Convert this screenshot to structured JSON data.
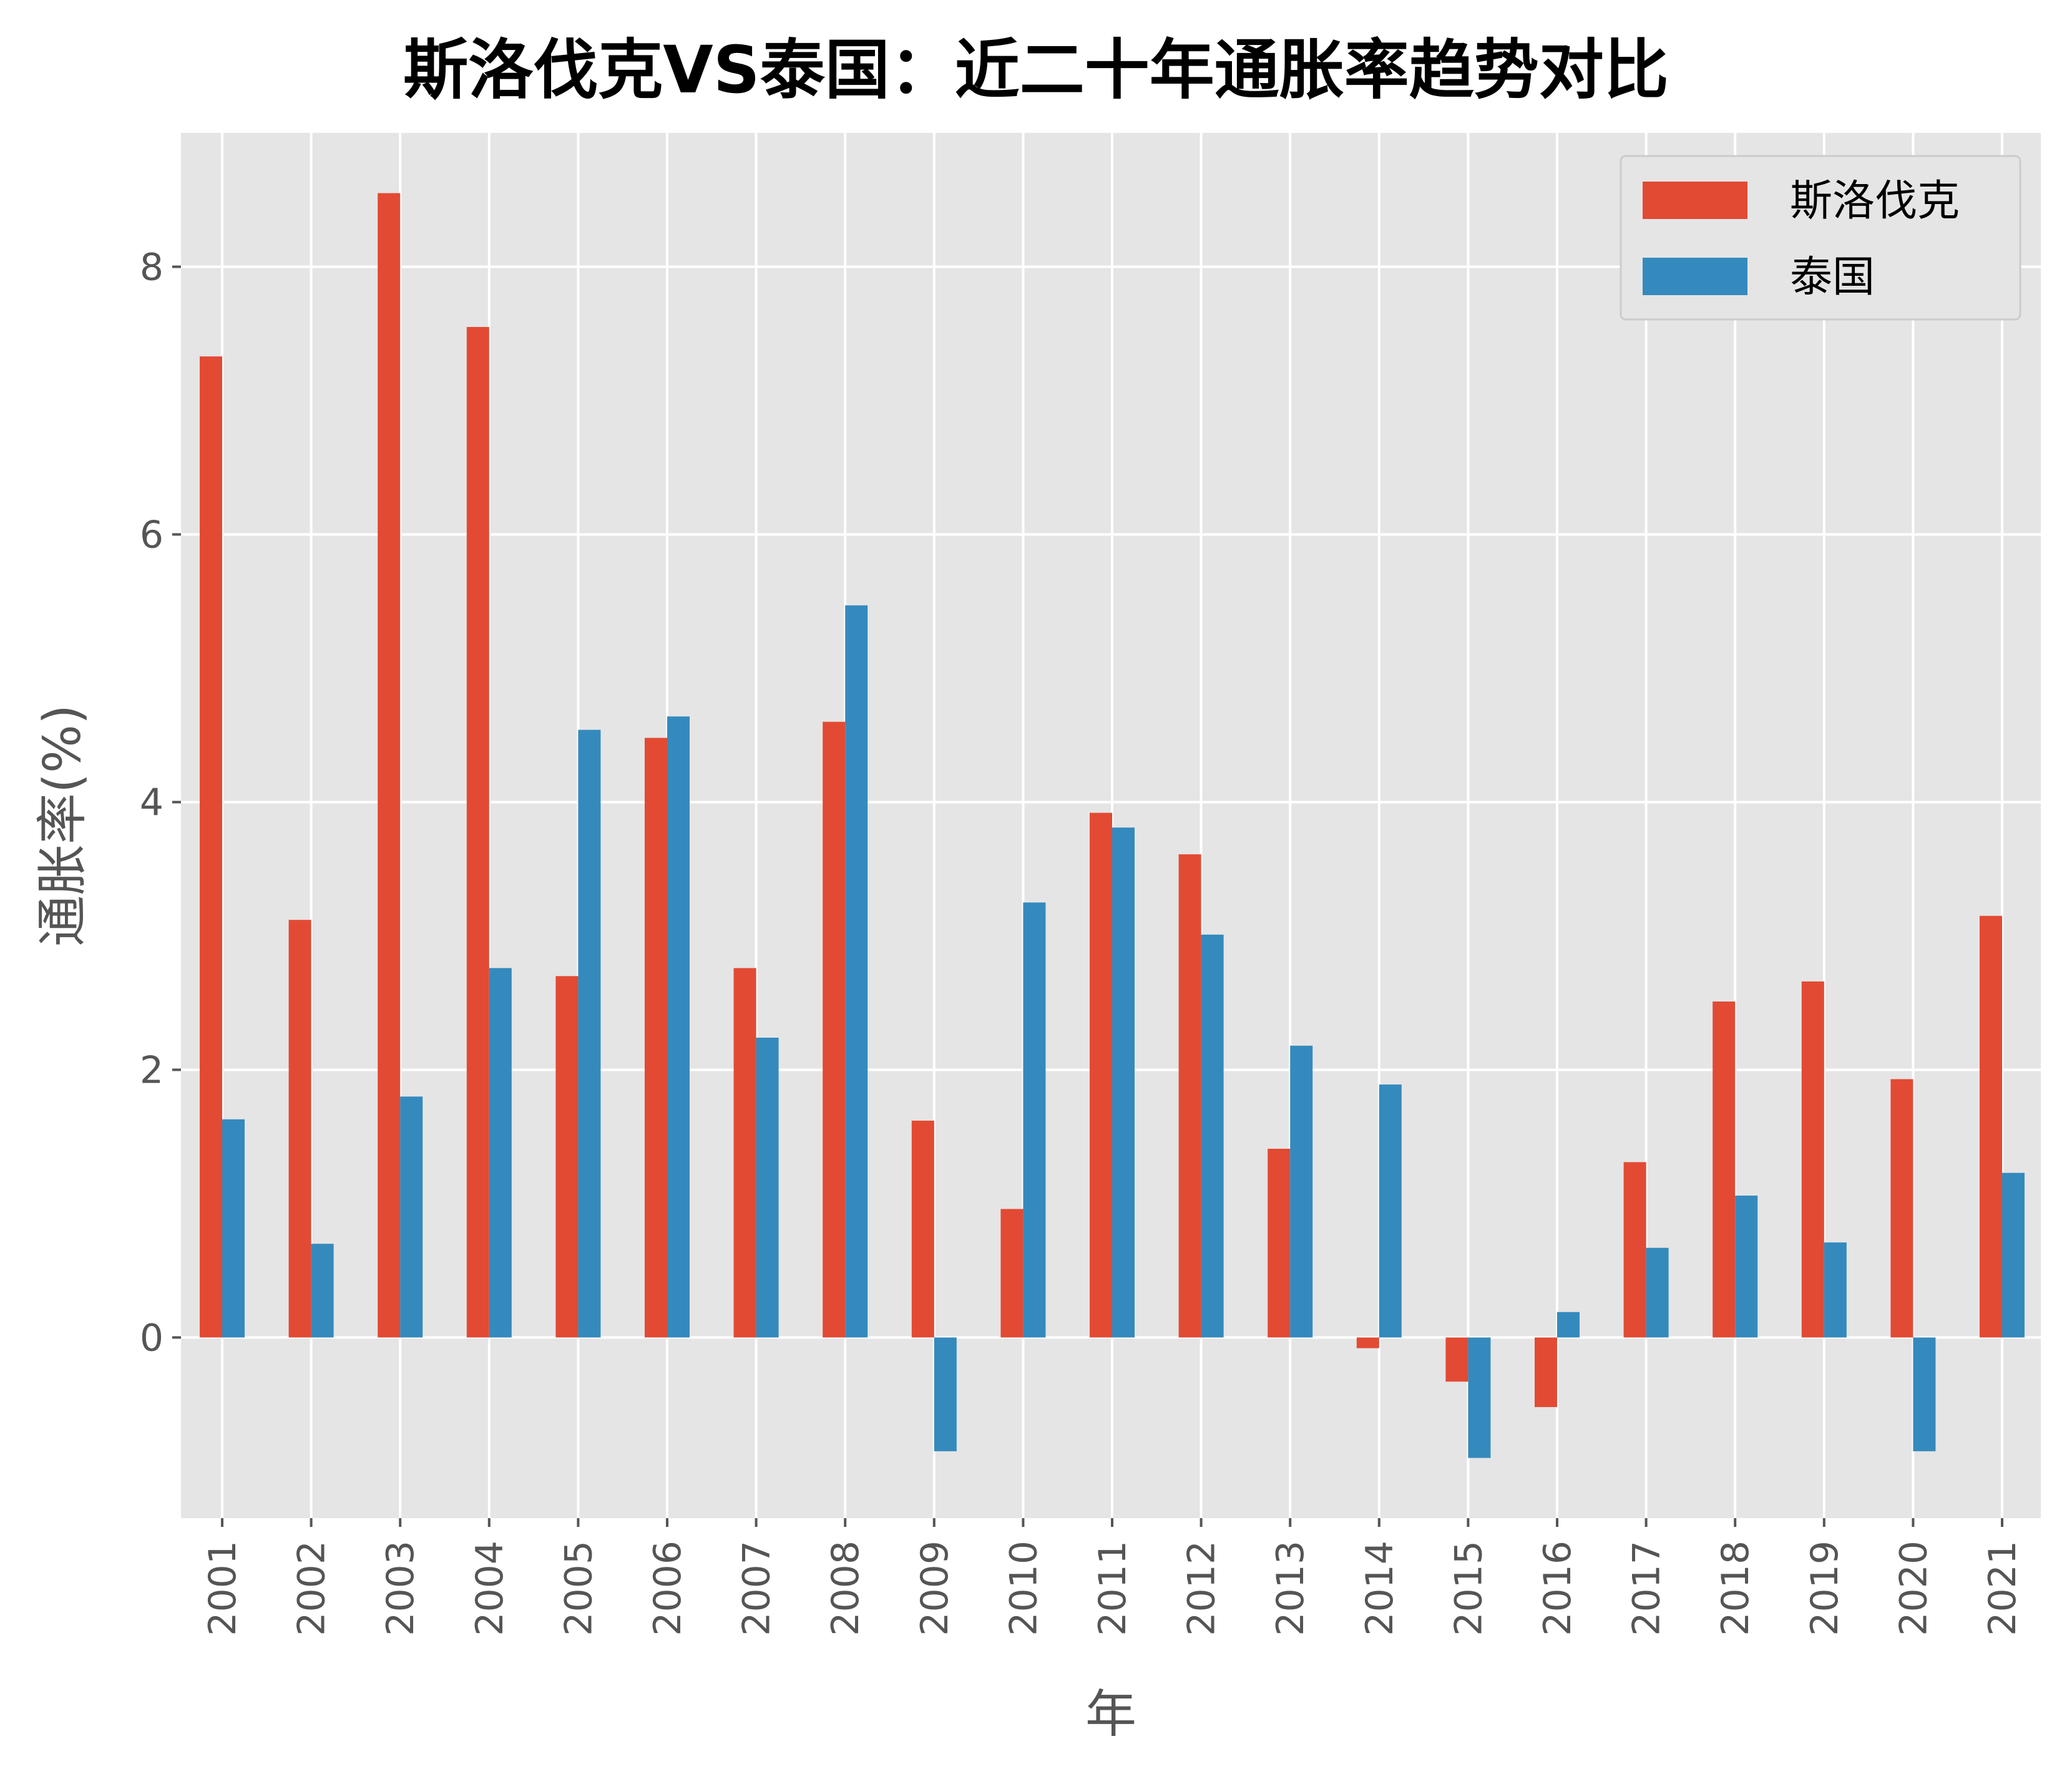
{
  "chart_data": {
    "type": "bar",
    "title": "斯洛伐克VS泰国：近二十年通胀率趋势对比",
    "xlabel": "年",
    "ylabel": "通胀率(%)",
    "categories": [
      "2001",
      "2002",
      "2003",
      "2004",
      "2005",
      "2006",
      "2007",
      "2008",
      "2009",
      "2010",
      "2011",
      "2012",
      "2013",
      "2014",
      "2015",
      "2016",
      "2017",
      "2018",
      "2019",
      "2020",
      "2021"
    ],
    "series": [
      {
        "name": "斯洛伐克",
        "color": "#E24A33",
        "values": [
          7.33,
          3.12,
          8.55,
          7.55,
          2.7,
          4.48,
          2.76,
          4.6,
          1.62,
          0.96,
          3.92,
          3.61,
          1.41,
          -0.08,
          -0.33,
          -0.52,
          1.31,
          2.51,
          2.66,
          1.93,
          3.15
        ]
      },
      {
        "name": "泰国",
        "color": "#348ABD",
        "values": [
          1.63,
          0.7,
          1.8,
          2.76,
          4.54,
          4.64,
          2.24,
          5.47,
          -0.85,
          3.25,
          3.81,
          3.01,
          2.18,
          1.89,
          -0.9,
          0.19,
          0.67,
          1.06,
          0.71,
          -0.85,
          1.23
        ]
      }
    ],
    "yticks": [
      0,
      2,
      4,
      6,
      8
    ],
    "ylim": [
      -1.35,
      9.0
    ],
    "grid": true,
    "legend": "top-right"
  }
}
